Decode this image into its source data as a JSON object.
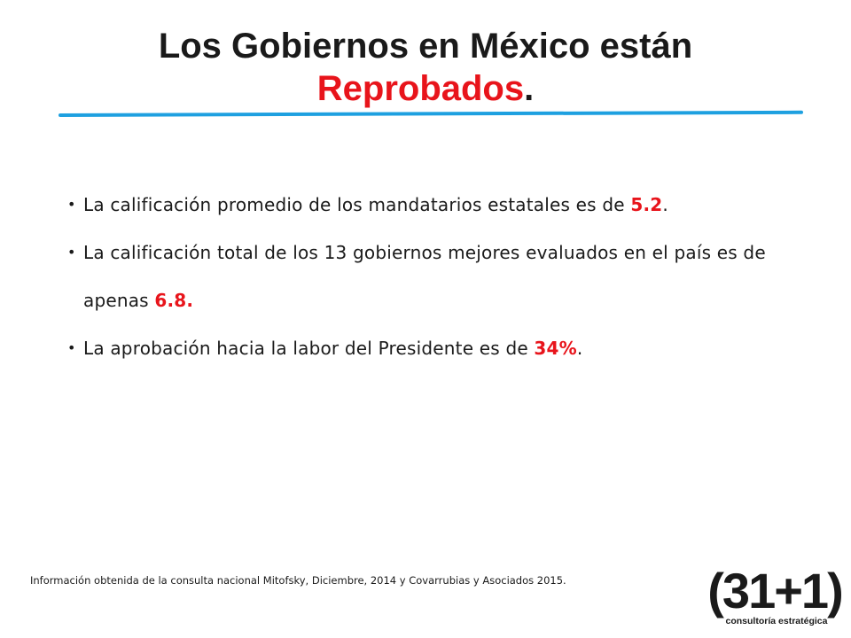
{
  "title": {
    "line1": "Los Gobiernos en México están",
    "line2_accent": "Reprobados",
    "line2_suffix": "."
  },
  "bullets": [
    {
      "before": "La calificación promedio de los mandatarios estatales es de ",
      "value": "5.2",
      "after": "."
    },
    {
      "before": "La calificación total de los 13 gobiernos mejores evaluados en el país es de apenas ",
      "value": "6.8",
      "after": "."
    },
    {
      "before": "La aprobación hacia la labor del Presidente es de ",
      "value": "34%",
      "after": "."
    }
  ],
  "bullet_symbol": "•",
  "source_note": "Información obtenida de la consulta nacional Mitofsky, Diciembre, 2014 y Covarrubias y Asociados 2015.",
  "logo": {
    "main_text": "(31+1)",
    "sub_text": "consultoría estratégica"
  },
  "colors": {
    "accent_red": "#e8141b",
    "rule_blue": "#1ea0e0",
    "text": "#1a1a1a"
  }
}
